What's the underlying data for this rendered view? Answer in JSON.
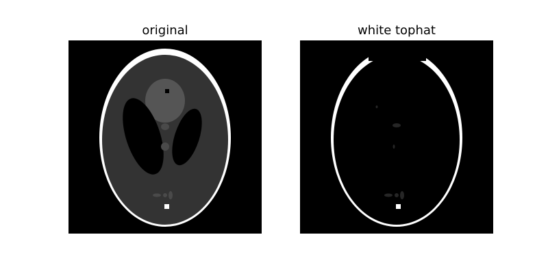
{
  "figure": {
    "panels": [
      {
        "title": "original"
      },
      {
        "title": "white tophat"
      }
    ]
  },
  "colors": {
    "background": "#ffffff",
    "image_background": "#000000",
    "skull": "#ffffff",
    "brain": "#333333",
    "upper_blob": "#555555",
    "small_ellipse": "#4a4a4a",
    "tophat_feature": "#262626"
  }
}
